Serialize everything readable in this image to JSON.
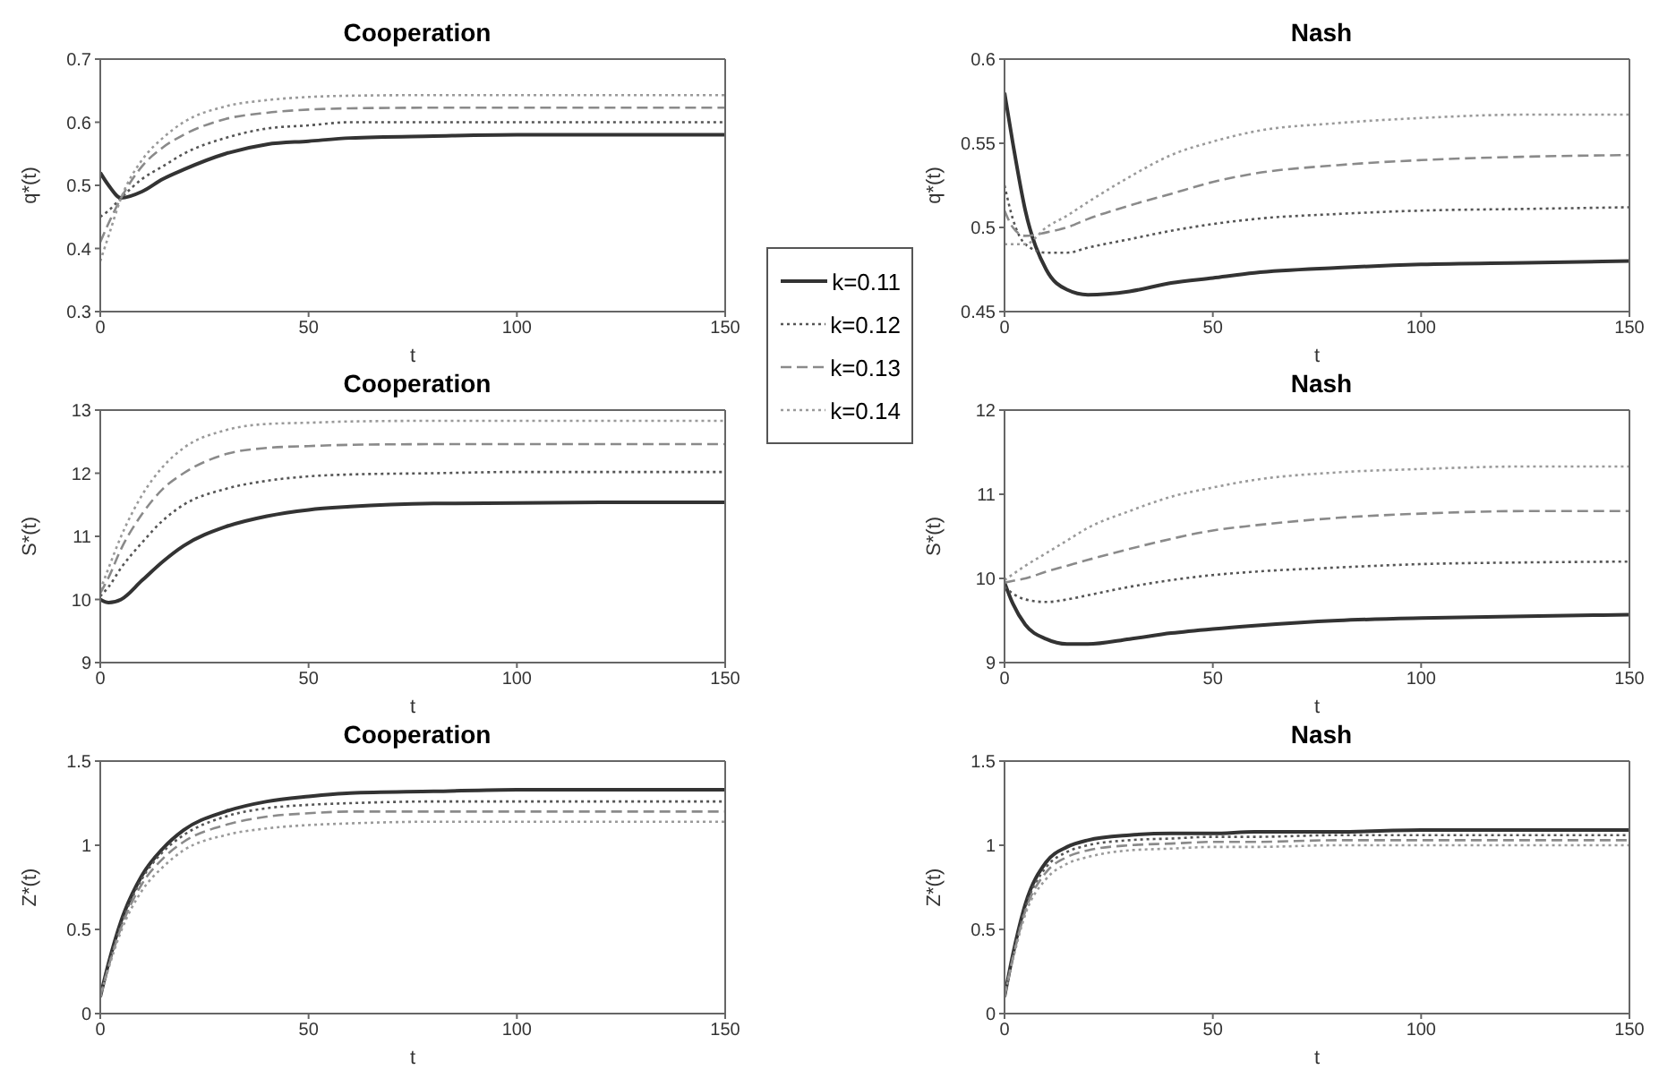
{
  "chart_data": [
    {
      "type": "line",
      "title": "Cooperation",
      "xlabel": "t",
      "ylabel": "q*(t)",
      "x": [
        0,
        2,
        5,
        10,
        15,
        20,
        30,
        40,
        50,
        60,
        80,
        100,
        125,
        150
      ],
      "xlim": [
        0,
        150
      ],
      "xticks": [
        0,
        50,
        100,
        150
      ],
      "ylim": [
        0.3,
        0.7
      ],
      "yticks": [
        0.3,
        0.4,
        0.5,
        0.6,
        0.7
      ],
      "legend": "right",
      "series": [
        {
          "name": "k=0.11",
          "color": "#333333",
          "line_style": "solid",
          "values": [
            0.52,
            0.5,
            0.48,
            0.49,
            0.51,
            0.525,
            0.55,
            0.565,
            0.57,
            0.575,
            0.578,
            0.58,
            0.58,
            0.58
          ]
        },
        {
          "name": "k=0.12",
          "color": "#555555",
          "line_style": "dotted",
          "values": [
            0.45,
            0.46,
            0.48,
            0.51,
            0.53,
            0.55,
            0.575,
            0.59,
            0.595,
            0.6,
            0.6,
            0.6,
            0.6,
            0.6
          ]
        },
        {
          "name": "k=0.13",
          "color": "#8a8a8a",
          "line_style": "dashed",
          "values": [
            0.41,
            0.44,
            0.48,
            0.53,
            0.56,
            0.58,
            0.605,
            0.615,
            0.62,
            0.622,
            0.623,
            0.623,
            0.623,
            0.623
          ]
        },
        {
          "name": "k=0.14",
          "color": "#9a9a9a",
          "line_style": "dotted",
          "values": [
            0.38,
            0.42,
            0.48,
            0.54,
            0.575,
            0.6,
            0.625,
            0.635,
            0.64,
            0.642,
            0.643,
            0.643,
            0.643,
            0.643
          ]
        }
      ]
    },
    {
      "type": "line",
      "title": "Nash",
      "xlabel": "t",
      "ylabel": "q*(t)",
      "x": [
        0,
        2,
        5,
        10,
        15,
        20,
        30,
        40,
        50,
        60,
        80,
        100,
        125,
        150
      ],
      "xlim": [
        0,
        150
      ],
      "xticks": [
        0,
        50,
        100,
        150
      ],
      "ylim": [
        0.45,
        0.6
      ],
      "yticks": [
        0.45,
        0.5,
        0.55,
        0.6
      ],
      "series": [
        {
          "color": "#333333",
          "line_style": "solid",
          "values": [
            0.58,
            0.55,
            0.51,
            0.475,
            0.463,
            0.46,
            0.462,
            0.467,
            0.47,
            0.473,
            0.476,
            0.478,
            0.479,
            0.48
          ]
        },
        {
          "color": "#555555",
          "line_style": "dotted",
          "values": [
            0.525,
            0.505,
            0.49,
            0.485,
            0.485,
            0.488,
            0.493,
            0.498,
            0.502,
            0.505,
            0.508,
            0.51,
            0.511,
            0.512
          ]
        },
        {
          "color": "#8a8a8a",
          "line_style": "dashed",
          "values": [
            0.51,
            0.5,
            0.495,
            0.497,
            0.5,
            0.505,
            0.513,
            0.52,
            0.527,
            0.532,
            0.537,
            0.54,
            0.542,
            0.543
          ]
        },
        {
          "color": "#9a9a9a",
          "line_style": "dotted",
          "values": [
            0.49,
            0.49,
            0.49,
            0.5,
            0.507,
            0.515,
            0.53,
            0.543,
            0.551,
            0.557,
            0.562,
            0.565,
            0.567,
            0.567
          ]
        }
      ]
    },
    {
      "type": "line",
      "title": "Cooperation",
      "xlabel": "t",
      "ylabel": "S*(t)",
      "x": [
        0,
        2,
        5,
        10,
        15,
        20,
        30,
        40,
        50,
        60,
        80,
        100,
        125,
        150
      ],
      "xlim": [
        0,
        150
      ],
      "xticks": [
        0,
        50,
        100,
        150
      ],
      "ylim": [
        9,
        13
      ],
      "yticks": [
        9,
        10,
        11,
        12,
        13
      ],
      "series": [
        {
          "color": "#333333",
          "line_style": "solid",
          "values": [
            10,
            9.95,
            10,
            10.3,
            10.6,
            10.85,
            11.15,
            11.32,
            11.42,
            11.47,
            11.52,
            11.53,
            11.54,
            11.54
          ]
        },
        {
          "color": "#555555",
          "line_style": "dotted",
          "values": [
            10.05,
            10.2,
            10.5,
            10.9,
            11.25,
            11.5,
            11.75,
            11.88,
            11.95,
            11.98,
            12,
            12.02,
            12.02,
            12.02
          ]
        },
        {
          "color": "#8a8a8a",
          "line_style": "dashed",
          "values": [
            10.1,
            10.35,
            10.8,
            11.35,
            11.75,
            12,
            12.3,
            12.4,
            12.43,
            12.45,
            12.46,
            12.46,
            12.46,
            12.46
          ]
        },
        {
          "color": "#9a9a9a",
          "line_style": "dotted",
          "values": [
            10.15,
            10.5,
            11,
            11.65,
            12.1,
            12.4,
            12.68,
            12.78,
            12.8,
            12.82,
            12.83,
            12.83,
            12.83,
            12.83
          ]
        }
      ]
    },
    {
      "type": "line",
      "title": "Nash",
      "xlabel": "t",
      "ylabel": "S*(t)",
      "x": [
        0,
        2,
        5,
        10,
        15,
        20,
        30,
        40,
        50,
        60,
        80,
        100,
        125,
        150
      ],
      "xlim": [
        0,
        150
      ],
      "xticks": [
        0,
        50,
        100,
        150
      ],
      "ylim": [
        9,
        12
      ],
      "yticks": [
        9,
        10,
        11,
        12
      ],
      "series": [
        {
          "color": "#333333",
          "line_style": "solid",
          "values": [
            9.95,
            9.7,
            9.45,
            9.28,
            9.22,
            9.22,
            9.28,
            9.35,
            9.4,
            9.44,
            9.5,
            9.53,
            9.55,
            9.57
          ]
        },
        {
          "color": "#555555",
          "line_style": "dotted",
          "values": [
            9.9,
            9.82,
            9.75,
            9.72,
            9.75,
            9.8,
            9.9,
            9.98,
            10.04,
            10.08,
            10.13,
            10.17,
            10.19,
            10.2
          ]
        },
        {
          "color": "#8a8a8a",
          "line_style": "dashed",
          "values": [
            9.95,
            9.97,
            10,
            10.08,
            10.15,
            10.22,
            10.35,
            10.47,
            10.57,
            10.63,
            10.72,
            10.77,
            10.8,
            10.8
          ]
        },
        {
          "color": "#9a9a9a",
          "line_style": "dotted",
          "values": [
            9.98,
            10.05,
            10.15,
            10.3,
            10.45,
            10.6,
            10.8,
            10.97,
            11.08,
            11.17,
            11.26,
            11.3,
            11.33,
            11.33
          ]
        }
      ]
    },
    {
      "type": "line",
      "title": "Cooperation",
      "xlabel": "t",
      "ylabel": "Z*(t)",
      "x": [
        0,
        2,
        5,
        10,
        15,
        20,
        30,
        40,
        50,
        60,
        80,
        100,
        125,
        150
      ],
      "xlim": [
        0,
        150
      ],
      "xticks": [
        0,
        50,
        100,
        150
      ],
      "ylim": [
        0,
        1.5
      ],
      "yticks": [
        0,
        0.5,
        1,
        1.5
      ],
      "series": [
        {
          "color": "#333333",
          "line_style": "solid",
          "values": [
            0.1,
            0.3,
            0.55,
            0.82,
            0.98,
            1.09,
            1.2,
            1.26,
            1.29,
            1.31,
            1.32,
            1.33,
            1.33,
            1.33
          ]
        },
        {
          "color": "#555555",
          "line_style": "dotted",
          "values": [
            0.1,
            0.29,
            0.53,
            0.8,
            0.96,
            1.06,
            1.17,
            1.22,
            1.24,
            1.25,
            1.26,
            1.26,
            1.26,
            1.26
          ]
        },
        {
          "color": "#8a8a8a",
          "line_style": "dashed",
          "values": [
            0.1,
            0.28,
            0.51,
            0.77,
            0.92,
            1.02,
            1.12,
            1.17,
            1.19,
            1.2,
            1.2,
            1.2,
            1.2,
            1.2
          ]
        },
        {
          "color": "#9a9a9a",
          "line_style": "dotted",
          "values": [
            0.1,
            0.27,
            0.49,
            0.73,
            0.87,
            0.97,
            1.06,
            1.1,
            1.12,
            1.13,
            1.14,
            1.14,
            1.14,
            1.14
          ]
        }
      ]
    },
    {
      "type": "line",
      "title": "Nash",
      "xlabel": "t",
      "ylabel": "Z*(t)",
      "x": [
        0,
        2,
        5,
        10,
        15,
        20,
        30,
        40,
        50,
        60,
        80,
        100,
        125,
        150
      ],
      "xlim": [
        0,
        150
      ],
      "xticks": [
        0,
        50,
        100,
        150
      ],
      "ylim": [
        0,
        1.5
      ],
      "yticks": [
        0,
        0.5,
        1,
        1.5
      ],
      "series": [
        {
          "color": "#333333",
          "line_style": "solid",
          "values": [
            0.1,
            0.35,
            0.65,
            0.9,
            0.99,
            1.03,
            1.06,
            1.07,
            1.07,
            1.08,
            1.08,
            1.09,
            1.09,
            1.09
          ]
        },
        {
          "color": "#555555",
          "line_style": "dotted",
          "values": [
            0.1,
            0.34,
            0.63,
            0.87,
            0.96,
            1,
            1.03,
            1.04,
            1.05,
            1.05,
            1.06,
            1.06,
            1.06,
            1.06
          ]
        },
        {
          "color": "#8a8a8a",
          "line_style": "dashed",
          "values": [
            0.1,
            0.33,
            0.61,
            0.84,
            0.93,
            0.97,
            1,
            1.01,
            1.02,
            1.02,
            1.03,
            1.03,
            1.03,
            1.03
          ]
        },
        {
          "color": "#9a9a9a",
          "line_style": "dotted",
          "values": [
            0.1,
            0.32,
            0.59,
            0.8,
            0.89,
            0.93,
            0.97,
            0.98,
            0.99,
            0.99,
            1,
            1,
            1,
            1
          ]
        }
      ]
    }
  ]
}
